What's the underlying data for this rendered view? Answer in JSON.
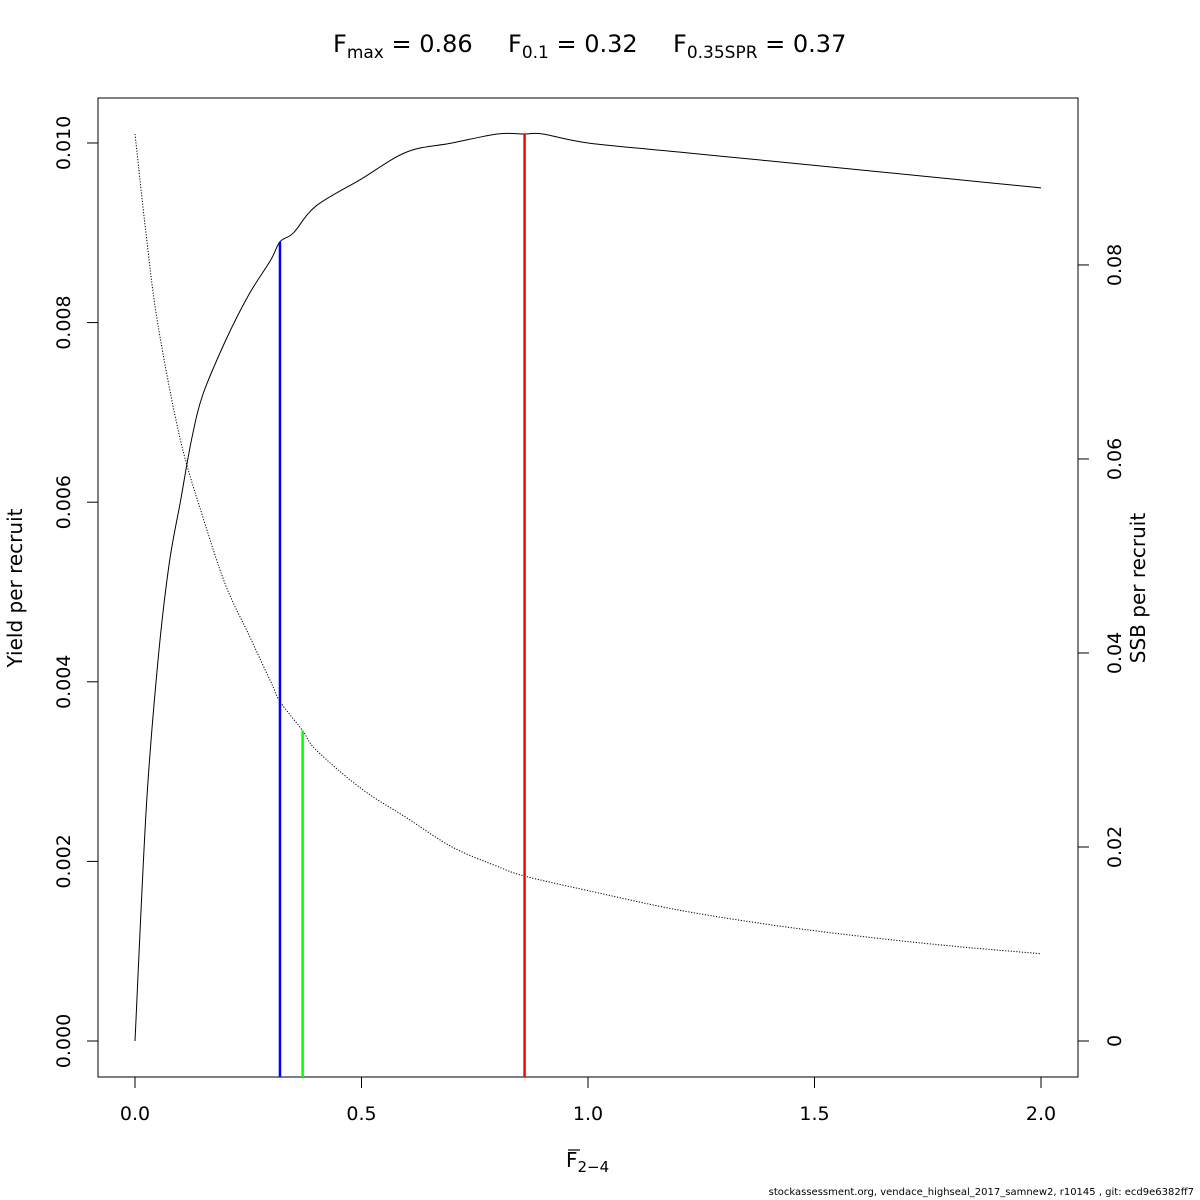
{
  "title": {
    "fmax": {
      "base": "F",
      "sub": "max",
      "value_text": " = 0.86"
    },
    "f01": {
      "base": "F",
      "sub": "0.1",
      "value_text": " = 0.32"
    },
    "fspr": {
      "base": "F",
      "sub": "0.35SPR",
      "value_text": " = 0.37"
    }
  },
  "footer": "stockassessment.org, vendace_highseal_2017_samnew2, r10145 , git: ecd9e6382ff7",
  "chart_data": {
    "type": "line",
    "xlabel": {
      "base": "F",
      "sub": "2−4",
      "overline": true
    },
    "ylabel": "Yield per recruit",
    "y2label": "SSB per recruit",
    "xlim": [
      0,
      2
    ],
    "ylim": [
      0,
      0.0101
    ],
    "y2lim": [
      0,
      0.0935
    ],
    "x_ticks": [
      "0.0",
      "0.5",
      "1.0",
      "1.5",
      "2.0"
    ],
    "x_tick_values": [
      0,
      0.5,
      1.0,
      1.5,
      2.0
    ],
    "y_ticks": [
      "0.000",
      "0.002",
      "0.004",
      "0.006",
      "0.008",
      "0.010"
    ],
    "y_tick_values": [
      0,
      0.002,
      0.004,
      0.006,
      0.008,
      0.01
    ],
    "y2_ticks": [
      "0",
      "0.02",
      "0.04",
      "0.06",
      "0.08"
    ],
    "y2_tick_values": [
      0,
      0.02,
      0.04,
      0.06,
      0.08
    ],
    "series": [
      {
        "axis": "left",
        "style": "solid",
        "color": "#000000",
        "x": [
          0,
          0.025,
          0.05,
          0.075,
          0.1,
          0.125,
          0.15,
          0.2,
          0.25,
          0.3,
          0.32,
          0.35,
          0.4,
          0.5,
          0.6,
          0.7,
          0.8,
          0.86,
          0.9,
          1.0,
          1.2,
          1.4,
          1.6,
          1.8,
          2.0
        ],
        "values": [
          0,
          0.0026,
          0.0042,
          0.0053,
          0.006,
          0.0067,
          0.0072,
          0.0078,
          0.0083,
          0.0087,
          0.0089,
          0.009,
          0.0093,
          0.0096,
          0.0099,
          0.01,
          0.0101,
          0.0101,
          0.0101,
          0.01,
          0.0099,
          0.0098,
          0.0097,
          0.0096,
          0.0095
        ]
      },
      {
        "axis": "right",
        "style": "dotted",
        "color": "#000000",
        "x": [
          0,
          0.025,
          0.05,
          0.1,
          0.15,
          0.2,
          0.25,
          0.3,
          0.32,
          0.37,
          0.4,
          0.5,
          0.6,
          0.7,
          0.8,
          0.86,
          1.0,
          1.2,
          1.4,
          1.6,
          1.8,
          2.0
        ],
        "values": [
          0.0935,
          0.083,
          0.074,
          0.062,
          0.054,
          0.047,
          0.042,
          0.037,
          0.035,
          0.032,
          0.03,
          0.026,
          0.023,
          0.02,
          0.018,
          0.017,
          0.0155,
          0.0135,
          0.012,
          0.0108,
          0.0098,
          0.009
        ]
      }
    ],
    "reference_lines": [
      {
        "name": "Fmax",
        "x": 0.86,
        "axis": "left",
        "top": 0.0101,
        "color": "#ff0000"
      },
      {
        "name": "F0.1",
        "x": 0.32,
        "axis": "left",
        "top": 0.0089,
        "color": "#0000ff"
      },
      {
        "name": "F0.35SPR",
        "x": 0.37,
        "axis": "right",
        "top": 0.032,
        "color": "#00ff00"
      }
    ]
  }
}
